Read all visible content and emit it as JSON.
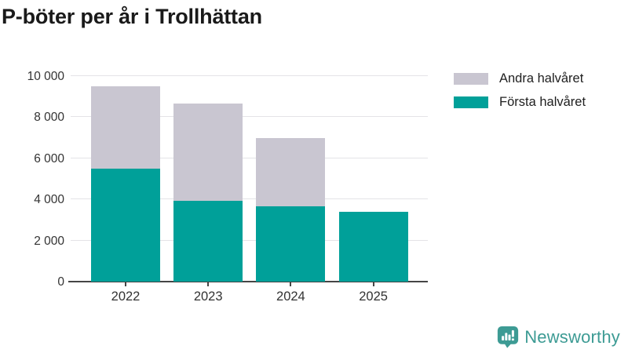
{
  "title": "P-böter per år i Trollhättan",
  "legend": {
    "items": [
      {
        "label": "Andra halvåret",
        "color": "#c9c6d1"
      },
      {
        "label": "Första halvåret",
        "color": "#00a099"
      }
    ]
  },
  "chart_data": {
    "type": "bar",
    "stacked": true,
    "title": "P-böter per år i Trollhättan",
    "categories": [
      "2022",
      "2023",
      "2024",
      "2025"
    ],
    "series": [
      {
        "name": "Första halvåret",
        "color": "#00a099",
        "values": [
          5500,
          3950,
          3650,
          3400
        ]
      },
      {
        "name": "Andra halvåret",
        "color": "#c9c6d1",
        "values": [
          4000,
          4700,
          3350,
          0
        ]
      }
    ],
    "totals": [
      9500,
      8650,
      7000,
      3400
    ],
    "xlabel": "",
    "ylabel": "",
    "ylim": [
      0,
      10000
    ],
    "ytick_values": [
      0,
      2000,
      4000,
      6000,
      8000,
      10000
    ],
    "ytick_labels": [
      "0",
      "2 000",
      "4 000",
      "6 000",
      "8 000",
      "10 000"
    ],
    "grid": true,
    "legend_position": "top-right"
  },
  "branding": {
    "logo_text": "Newsworthy",
    "logo_color": "#3d9b94"
  },
  "colors": {
    "first_half": "#00a099",
    "second_half": "#c9c6d1",
    "axis": "#454545",
    "gridline": "#e4e3e7",
    "text": "#333333",
    "title_text": "#1a1a1a"
  }
}
